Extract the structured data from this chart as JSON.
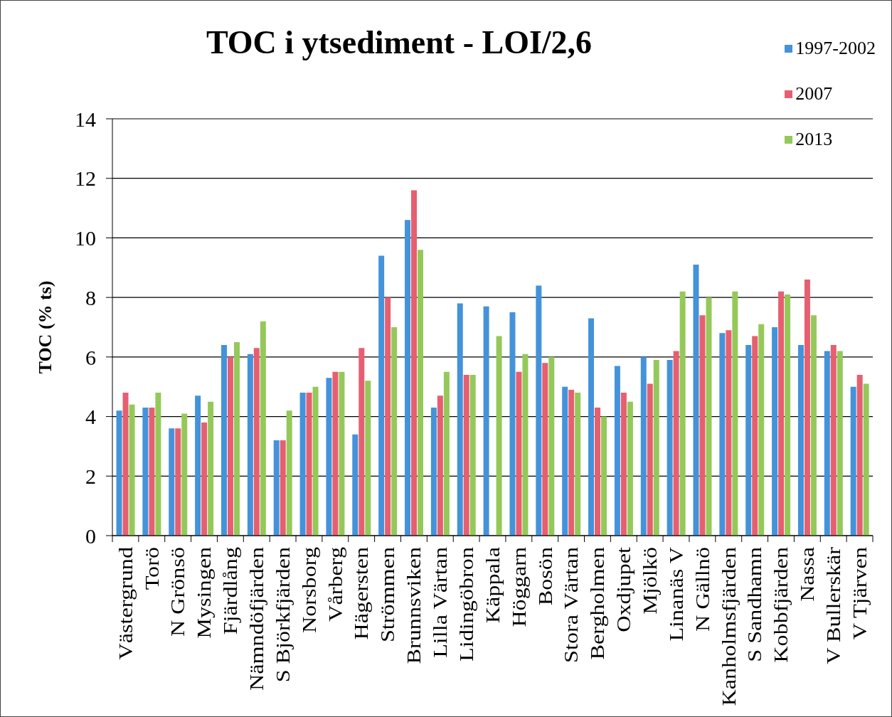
{
  "chart_data": {
    "type": "bar",
    "title": "TOC i ytsediment - LOI/2,6",
    "ylabel": "TOC (% ts)",
    "categories": [
      "Västergrund",
      "Torö",
      "N Grönsö",
      "Mysingen",
      "Fjärdlång",
      "Nämndöfjärden",
      "S Björkfjärden",
      "Norsborg",
      "Vårberg",
      "Hägersten",
      "Strömmen",
      "Brunnsviken",
      "Lilla Värtan",
      "Lidingöbron",
      "Käppala",
      "Höggarn",
      "Bosön",
      "Stora Värtan",
      "Bergholmen",
      "Oxdjupet",
      "Mjölkö",
      "Linanäs V",
      "N Gällnö",
      "Kanholmsfjärden",
      "S Sandhamn",
      "Kobbfjärden",
      "Nassa",
      "V Bullerskär",
      "V Tjärven"
    ],
    "series": [
      {
        "name": "1997-2002",
        "color": "#4493da",
        "values": [
          4.2,
          4.3,
          3.6,
          4.7,
          6.4,
          6.1,
          3.2,
          4.8,
          5.3,
          3.4,
          9.4,
          10.6,
          4.3,
          7.8,
          7.7,
          7.5,
          8.4,
          5.0,
          7.3,
          5.7,
          6.0,
          5.9,
          9.1,
          6.8,
          6.4,
          7.0,
          6.4,
          6.2,
          5.0
        ]
      },
      {
        "name": "2007",
        "color": "#e65f70",
        "values": [
          4.8,
          4.3,
          3.6,
          3.8,
          6.0,
          6.3,
          3.2,
          4.8,
          5.5,
          6.3,
          8.0,
          11.6,
          4.7,
          5.4,
          null,
          5.5,
          5.8,
          4.9,
          4.3,
          4.8,
          5.1,
          6.2,
          7.4,
          6.9,
          6.7,
          8.2,
          8.6,
          6.4,
          5.4
        ]
      },
      {
        "name": "2013",
        "color": "#94c95a",
        "values": [
          4.4,
          4.8,
          4.1,
          4.5,
          6.5,
          7.2,
          4.2,
          5.0,
          5.5,
          5.2,
          7.0,
          9.6,
          5.5,
          5.4,
          6.7,
          6.1,
          6.0,
          4.8,
          4.0,
          4.5,
          5.9,
          8.2,
          8.0,
          8.2,
          7.1,
          8.1,
          7.4,
          6.2,
          5.1
        ]
      }
    ],
    "ylim": [
      0,
      14
    ],
    "yticks": [
      0,
      2,
      4,
      6,
      8,
      10,
      12,
      14
    ],
    "grid": "y",
    "legend": "top right"
  }
}
